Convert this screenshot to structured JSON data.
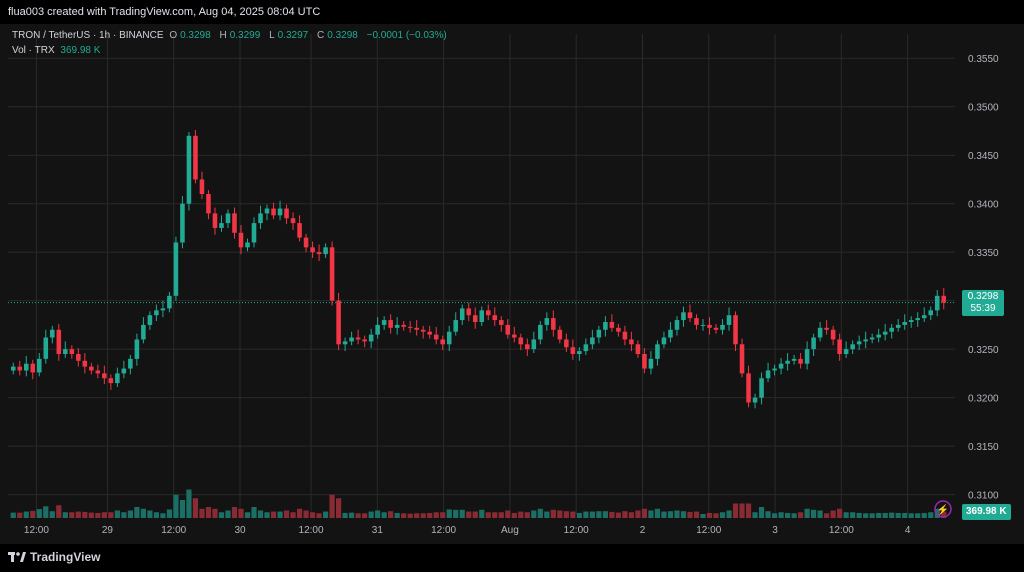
{
  "header": {
    "text": "flua003 created with TradingView.com, Aug 04, 2025 08:04 UTC"
  },
  "legend": {
    "symbol": "TRON / TetherUS · 1h · BINANCE",
    "o_label": "O",
    "o_value": "0.3298",
    "h_label": "H",
    "h_value": "0.3299",
    "l_label": "L",
    "l_value": "0.3297",
    "c_label": "C",
    "c_value": "0.3298",
    "change": "−0.0001 (−0.03%)",
    "vol_label": "Vol · TRX",
    "vol_value": "369.98 K"
  },
  "price_tag": {
    "price": "0.3298",
    "countdown": "55:39"
  },
  "volume_tag": "369.98 K",
  "footer": {
    "logo_text": "TradingView"
  },
  "colors": {
    "up": "#22ab94",
    "down": "#f23645",
    "up_vol": "#1b6f64",
    "down_vol": "#8a2b33",
    "bg": "#131313",
    "grid": "#2a2a2a"
  },
  "chart_data": {
    "type": "candlestick",
    "title": "TRON / TetherUS · 1h · BINANCE",
    "ylim": [
      0.308,
      0.3575
    ],
    "y_ticks": [
      "0.3550",
      "0.3500",
      "0.3450",
      "0.3400",
      "0.3350",
      "0.3300",
      "0.3250",
      "0.3200",
      "0.3150",
      "0.3100"
    ],
    "x_ticks": [
      "12:00",
      "29",
      "12:00",
      "30",
      "12:00",
      "31",
      "12:00",
      "Aug",
      "12:00",
      "2",
      "12:00",
      "3",
      "12:00",
      "4"
    ],
    "current_price": 0.3298,
    "close_series": [
      0.3232,
      0.3228,
      0.3235,
      0.3226,
      0.324,
      0.3262,
      0.327,
      0.3245,
      0.325,
      0.3245,
      0.3238,
      0.3232,
      0.3228,
      0.3225,
      0.322,
      0.3215,
      0.3225,
      0.323,
      0.324,
      0.326,
      0.3275,
      0.3285,
      0.329,
      0.3292,
      0.3305,
      0.336,
      0.34,
      0.347,
      0.3425,
      0.341,
      0.339,
      0.3375,
      0.338,
      0.339,
      0.337,
      0.3355,
      0.336,
      0.338,
      0.339,
      0.3395,
      0.3388,
      0.3395,
      0.3385,
      0.338,
      0.3365,
      0.3355,
      0.335,
      0.3348,
      0.3355,
      0.33,
      0.3255,
      0.3258,
      0.3262,
      0.326,
      0.3258,
      0.3265,
      0.3275,
      0.328,
      0.3272,
      0.3275,
      0.3273,
      0.3272,
      0.327,
      0.3268,
      0.3265,
      0.326,
      0.3255,
      0.3268,
      0.328,
      0.3292,
      0.3285,
      0.3278,
      0.329,
      0.3285,
      0.328,
      0.3275,
      0.3265,
      0.3262,
      0.3255,
      0.325,
      0.326,
      0.3275,
      0.3282,
      0.327,
      0.326,
      0.3252,
      0.3245,
      0.3248,
      0.3255,
      0.3262,
      0.327,
      0.3278,
      0.3272,
      0.3268,
      0.326,
      0.3255,
      0.3245,
      0.323,
      0.324,
      0.3255,
      0.3262,
      0.327,
      0.328,
      0.3288,
      0.3282,
      0.3275,
      0.3275,
      0.3272,
      0.327,
      0.3275,
      0.3285,
      0.3255,
      0.3225,
      0.3195,
      0.32,
      0.322,
      0.3228,
      0.323,
      0.3235,
      0.3238,
      0.324,
      0.3235,
      0.325,
      0.3262,
      0.3272,
      0.327,
      0.326,
      0.3245,
      0.325,
      0.3255,
      0.3258,
      0.326,
      0.3262,
      0.3265,
      0.3268,
      0.3272,
      0.3275,
      0.3278,
      0.328,
      0.3282,
      0.3285,
      0.329,
      0.3305,
      0.3298
    ]
  }
}
